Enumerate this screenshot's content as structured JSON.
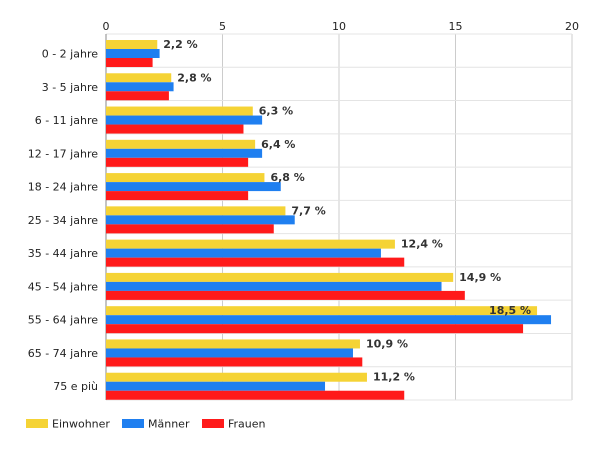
{
  "chart_data": {
    "type": "bar",
    "orientation": "horizontal",
    "categories": [
      "0 - 2 jahre",
      "3 - 5 jahre",
      "6 - 11 jahre",
      "12 - 17 jahre",
      "18 - 24 jahre",
      "25 - 34 jahre",
      "35 - 44 jahre",
      "45 - 54 jahre",
      "55 - 64 jahre",
      "65 - 74 jahre",
      "75 e più"
    ],
    "series": [
      {
        "name": "Einwohner",
        "color": "#f5d335",
        "values": [
          2.2,
          2.8,
          6.3,
          6.4,
          6.8,
          7.7,
          12.4,
          14.9,
          18.5,
          10.9,
          11.2
        ]
      },
      {
        "name": "Männer",
        "color": "#1f7ff0",
        "values": [
          2.3,
          2.9,
          6.7,
          6.7,
          7.5,
          8.1,
          11.8,
          14.4,
          19.1,
          10.6,
          9.4
        ]
      },
      {
        "name": "Frauen",
        "color": "#ff1a1a",
        "values": [
          2.0,
          2.7,
          5.9,
          6.1,
          6.1,
          7.2,
          12.8,
          15.4,
          17.9,
          11.0,
          12.8
        ]
      }
    ],
    "data_labels": [
      "2,2 %",
      "2,8 %",
      "6,3 %",
      "6,4 %",
      "6,8 %",
      "7,7 %",
      "12,4 %",
      "14,9 %",
      "18,5 %",
      "10,9 %",
      "11,2 %"
    ],
    "x_ticks": [
      0,
      5,
      10,
      15,
      20
    ],
    "xlim": [
      0,
      20
    ],
    "axis_position": "top",
    "grid": true,
    "legend": "bottom-left",
    "title": "",
    "xlabel": "",
    "ylabel": ""
  }
}
